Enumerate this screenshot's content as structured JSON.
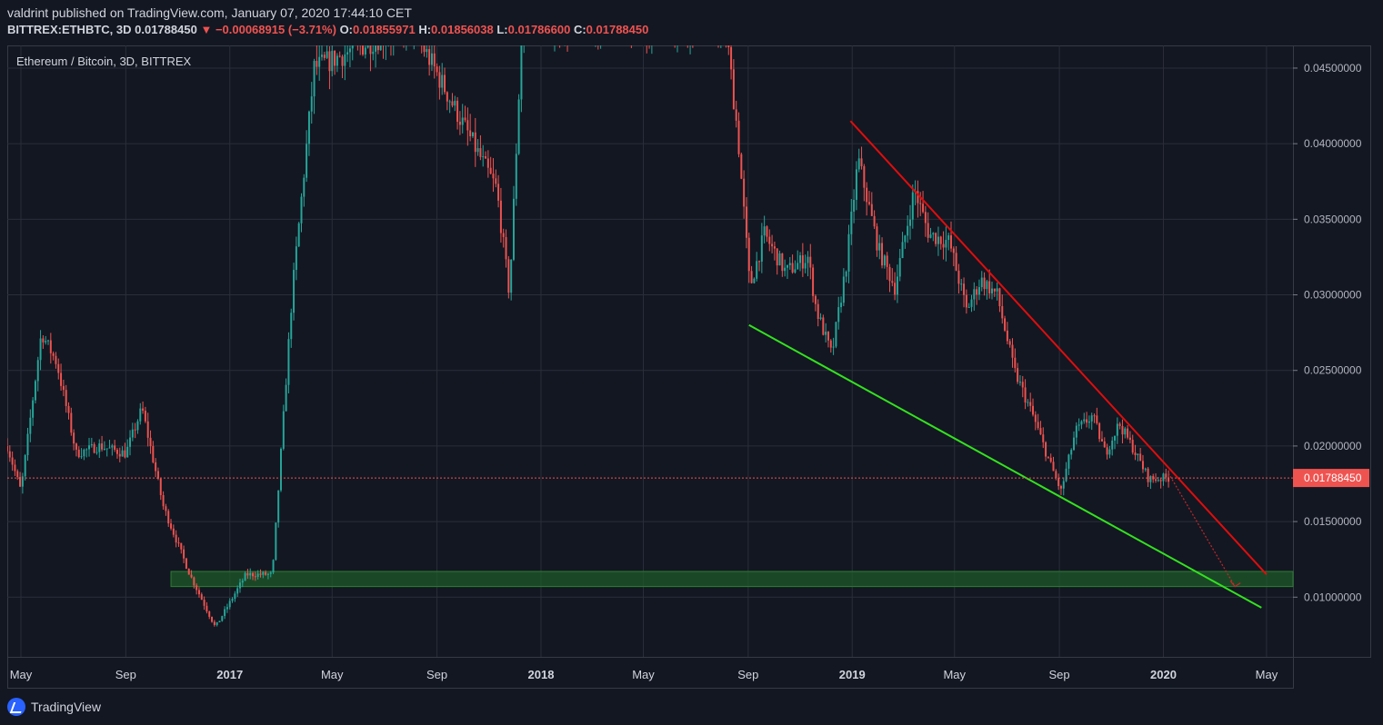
{
  "header": {
    "published_line": "valdrint published on TradingView.com, January 07, 2020 17:44:10 CET",
    "symbol": "BITTREX:ETHBTC, 3D",
    "last_price": "0.01788450",
    "change": "−0.00068915 (−3.71%)",
    "ohlc": {
      "o_label": "O:",
      "o_value": "0.01855971",
      "h_label": "H:",
      "h_value": "0.01856038",
      "l_label": "L:",
      "l_value": "0.01786600",
      "c_label": "C:",
      "c_value": "0.01788450"
    }
  },
  "chart": {
    "legend_title": "Ethereum / Bitcoin, 3D, BITTREX",
    "current_price_label": "0.01788450",
    "colors": {
      "background": "#131722",
      "grid": "#2a2e39",
      "up": "#26a69a",
      "down": "#ef5350",
      "resistance": "#e00d0d",
      "support": "#33e11f",
      "zone": "#1e5a2a"
    }
  },
  "chart_data": {
    "type": "candlestick",
    "title": "Ethereum / Bitcoin, 3D, BITTREX",
    "y_ticks": [
      "0.04500000",
      "0.04000000",
      "0.03500000",
      "0.03000000",
      "0.02500000",
      "0.02000000",
      "0.01500000",
      "0.01000000"
    ],
    "y_range": [
      0.00605,
      0.0465
    ],
    "x_ticks": [
      "May",
      "Sep",
      "2017",
      "May",
      "Sep",
      "2018",
      "May",
      "Sep",
      "2019",
      "May",
      "Sep",
      "2020",
      "May"
    ],
    "x_range": [
      "2016-04-15",
      "2020-06-01"
    ],
    "series": [
      {
        "date": "2016-04-15",
        "price": 0.02
      },
      {
        "date": "2016-05-01",
        "price": 0.017
      },
      {
        "date": "2016-05-25",
        "price": 0.0275
      },
      {
        "date": "2016-06-12",
        "price": 0.0255
      },
      {
        "date": "2016-07-05",
        "price": 0.0195
      },
      {
        "date": "2016-08-01",
        "price": 0.02
      },
      {
        "date": "2016-09-01",
        "price": 0.0195
      },
      {
        "date": "2016-09-20",
        "price": 0.0225
      },
      {
        "date": "2016-10-15",
        "price": 0.016
      },
      {
        "date": "2016-11-15",
        "price": 0.0115
      },
      {
        "date": "2016-12-15",
        "price": 0.008
      },
      {
        "date": "2017-01-20",
        "price": 0.0115
      },
      {
        "date": "2017-02-20",
        "price": 0.0115
      },
      {
        "date": "2017-03-15",
        "price": 0.03
      },
      {
        "date": "2017-04-10",
        "price": 0.045
      },
      {
        "date": "2017-08-01",
        "price": 0.048
      },
      {
        "date": "2017-11-10",
        "price": 0.037
      },
      {
        "date": "2017-11-25",
        "price": 0.03
      },
      {
        "date": "2017-12-10",
        "price": 0.048
      },
      {
        "date": "2018-08-05",
        "price": 0.048
      },
      {
        "date": "2018-08-20",
        "price": 0.0405
      },
      {
        "date": "2018-09-03",
        "price": 0.0305
      },
      {
        "date": "2018-09-20",
        "price": 0.034
      },
      {
        "date": "2018-10-15",
        "price": 0.0315
      },
      {
        "date": "2018-11-10",
        "price": 0.0325
      },
      {
        "date": "2018-11-20",
        "price": 0.029
      },
      {
        "date": "2018-12-08",
        "price": 0.026
      },
      {
        "date": "2018-12-25",
        "price": 0.032
      },
      {
        "date": "2019-01-08",
        "price": 0.039
      },
      {
        "date": "2019-02-01",
        "price": 0.033
      },
      {
        "date": "2019-02-20",
        "price": 0.0305
      },
      {
        "date": "2019-03-15",
        "price": 0.037
      },
      {
        "date": "2019-04-01",
        "price": 0.034
      },
      {
        "date": "2019-04-25",
        "price": 0.0335
      },
      {
        "date": "2019-05-15",
        "price": 0.029
      },
      {
        "date": "2019-06-01",
        "price": 0.031
      },
      {
        "date": "2019-06-20",
        "price": 0.03
      },
      {
        "date": "2019-07-10",
        "price": 0.025
      },
      {
        "date": "2019-08-01",
        "price": 0.022
      },
      {
        "date": "2019-08-20",
        "price": 0.019
      },
      {
        "date": "2019-09-03",
        "price": 0.017
      },
      {
        "date": "2019-09-20",
        "price": 0.021
      },
      {
        "date": "2019-10-10",
        "price": 0.022
      },
      {
        "date": "2019-10-25",
        "price": 0.0195
      },
      {
        "date": "2019-11-10",
        "price": 0.0215
      },
      {
        "date": "2019-11-25",
        "price": 0.02
      },
      {
        "date": "2019-12-15",
        "price": 0.0178
      },
      {
        "date": "2020-01-07",
        "price": 0.0179
      }
    ],
    "drawings": {
      "resistance_line": {
        "from": {
          "date": "2018-12-30",
          "price": 0.0415
        },
        "to": {
          "date": "2020-05-01",
          "price": 0.0115
        }
      },
      "support_line": {
        "from": {
          "date": "2018-09-02",
          "price": 0.028
        },
        "to": {
          "date": "2020-04-25",
          "price": 0.0093
        }
      },
      "support_zone": {
        "from_date": "2016-10-24",
        "to_date": "2020-06-01",
        "low": 0.0107,
        "high": 0.0117
      },
      "projection": {
        "from": {
          "date": "2020-01-07",
          "price": 0.0182
        },
        "to": {
          "date": "2020-03-25",
          "price": 0.0107
        }
      },
      "current_price": 0.0178845
    }
  }
}
